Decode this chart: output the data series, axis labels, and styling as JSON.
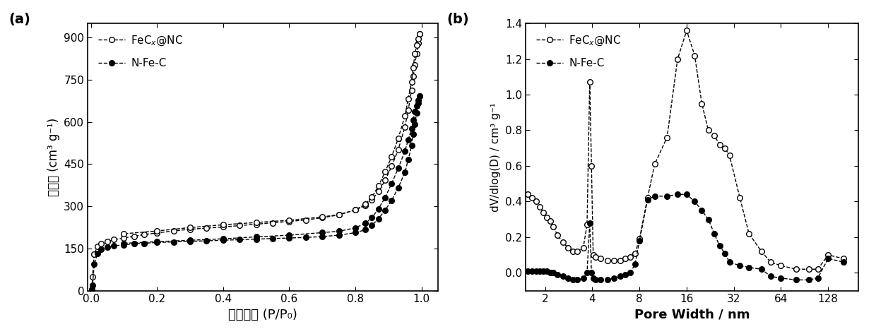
{
  "panel_a": {
    "title": "(a)",
    "xlabel_cn": "相对压力 (P/P₀)",
    "ylabel_cn": "比体积 (cm³ g⁻¹)",
    "ylim": [
      0,
      950
    ],
    "yticks": [
      0,
      150,
      300,
      450,
      600,
      750,
      900
    ],
    "xlim": [
      -0.01,
      1.05
    ],
    "xticks": [
      0.0,
      0.2,
      0.4,
      0.6,
      0.8,
      1.0
    ],
    "fecx_adsorption_x": [
      0.003,
      0.005,
      0.01,
      0.02,
      0.03,
      0.05,
      0.07,
      0.1,
      0.13,
      0.16,
      0.2,
      0.25,
      0.3,
      0.35,
      0.4,
      0.45,
      0.5,
      0.55,
      0.6,
      0.65,
      0.7,
      0.75,
      0.8,
      0.83,
      0.85,
      0.87,
      0.89,
      0.91,
      0.93,
      0.95,
      0.96,
      0.97,
      0.975,
      0.98,
      0.985,
      0.99,
      0.995
    ],
    "fecx_adsorption_y": [
      5,
      50,
      130,
      158,
      168,
      175,
      181,
      187,
      193,
      199,
      205,
      212,
      218,
      222,
      226,
      231,
      236,
      241,
      246,
      251,
      259,
      269,
      287,
      302,
      322,
      352,
      392,
      442,
      502,
      582,
      642,
      712,
      762,
      802,
      842,
      880,
      912
    ],
    "fecx_desorption_x": [
      0.995,
      0.99,
      0.985,
      0.98,
      0.975,
      0.97,
      0.96,
      0.95,
      0.93,
      0.91,
      0.89,
      0.87,
      0.85,
      0.83,
      0.8,
      0.75,
      0.7,
      0.6,
      0.5,
      0.4,
      0.3,
      0.2,
      0.1
    ],
    "fecx_desorption_y": [
      912,
      895,
      872,
      842,
      792,
      742,
      682,
      622,
      542,
      477,
      422,
      372,
      332,
      307,
      287,
      270,
      262,
      250,
      242,
      234,
      224,
      212,
      202
    ],
    "nfec_adsorption_x": [
      0.003,
      0.005,
      0.01,
      0.02,
      0.03,
      0.05,
      0.07,
      0.1,
      0.13,
      0.16,
      0.2,
      0.25,
      0.3,
      0.35,
      0.4,
      0.45,
      0.5,
      0.55,
      0.6,
      0.65,
      0.7,
      0.75,
      0.8,
      0.83,
      0.85,
      0.87,
      0.89,
      0.91,
      0.93,
      0.95,
      0.96,
      0.97,
      0.975,
      0.98,
      0.985,
      0.99,
      0.995
    ],
    "nfec_adsorption_y": [
      5,
      18,
      95,
      132,
      147,
      154,
      159,
      163,
      166,
      168,
      171,
      173,
      175,
      177,
      179,
      181,
      183,
      185,
      187,
      189,
      192,
      197,
      206,
      216,
      231,
      256,
      286,
      321,
      366,
      421,
      466,
      516,
      556,
      591,
      631,
      666,
      691
    ],
    "nfec_desorption_x": [
      0.995,
      0.99,
      0.985,
      0.98,
      0.975,
      0.97,
      0.96,
      0.95,
      0.93,
      0.91,
      0.89,
      0.87,
      0.85,
      0.83,
      0.8,
      0.75,
      0.7,
      0.6,
      0.5,
      0.4,
      0.3,
      0.2,
      0.1
    ],
    "nfec_desorption_y": [
      691,
      676,
      656,
      636,
      606,
      576,
      536,
      496,
      436,
      381,
      331,
      291,
      259,
      239,
      223,
      211,
      206,
      197,
      191,
      184,
      179,
      174,
      168
    ],
    "legend_fecx": "FeC$_x$@NC",
    "legend_nfec": "N-Fe-C"
  },
  "panel_b": {
    "title": "(b)",
    "xlabel": "Pore Width / nm",
    "ylabel": "dV/dlog(D) / cm³ g⁻¹",
    "ylim": [
      -0.1,
      1.4
    ],
    "yticks": [
      0.0,
      0.2,
      0.4,
      0.6,
      0.8,
      1.0,
      1.2,
      1.4
    ],
    "xticks_log": [
      2,
      4,
      8,
      16,
      32,
      64,
      128
    ],
    "xlim_log": [
      1.5,
      200
    ],
    "fecx_x": [
      1.55,
      1.65,
      1.75,
      1.85,
      1.95,
      2.05,
      2.15,
      2.25,
      2.4,
      2.6,
      2.8,
      3.0,
      3.2,
      3.5,
      3.7,
      3.85,
      3.95,
      4.05,
      4.2,
      4.5,
      5.0,
      5.5,
      6.0,
      6.5,
      7.0,
      7.5,
      8.0,
      9.0,
      10.0,
      12.0,
      14.0,
      16.0,
      18.0,
      20.0,
      22.0,
      24.0,
      26.0,
      28.0,
      30.0,
      35.0,
      40.0,
      48.0,
      55.0,
      64.0,
      80.0,
      96.0,
      110.0,
      128.0,
      160.0
    ],
    "fecx_y": [
      0.44,
      0.42,
      0.4,
      0.37,
      0.34,
      0.31,
      0.29,
      0.26,
      0.21,
      0.17,
      0.14,
      0.12,
      0.12,
      0.14,
      0.27,
      1.07,
      0.6,
      0.1,
      0.09,
      0.08,
      0.07,
      0.07,
      0.07,
      0.08,
      0.09,
      0.11,
      0.19,
      0.42,
      0.61,
      0.76,
      1.2,
      1.36,
      1.22,
      0.95,
      0.8,
      0.77,
      0.72,
      0.7,
      0.66,
      0.42,
      0.22,
      0.12,
      0.06,
      0.04,
      0.02,
      0.02,
      0.02,
      0.1,
      0.08
    ],
    "nfec_x": [
      1.55,
      1.65,
      1.75,
      1.85,
      1.95,
      2.05,
      2.15,
      2.25,
      2.4,
      2.6,
      2.8,
      3.0,
      3.2,
      3.5,
      3.7,
      3.85,
      3.95,
      4.05,
      4.2,
      4.5,
      5.0,
      5.5,
      6.0,
      6.5,
      7.0,
      7.5,
      8.0,
      9.0,
      10.0,
      12.0,
      14.0,
      16.0,
      18.0,
      20.0,
      22.0,
      24.0,
      26.0,
      28.0,
      30.0,
      35.0,
      40.0,
      48.0,
      55.0,
      64.0,
      80.0,
      96.0,
      110.0,
      128.0,
      160.0
    ],
    "nfec_y": [
      0.01,
      0.01,
      0.01,
      0.01,
      0.01,
      0.01,
      0.0,
      0.0,
      -0.01,
      -0.02,
      -0.03,
      -0.04,
      -0.04,
      -0.03,
      0.0,
      0.28,
      0.0,
      -0.03,
      -0.04,
      -0.04,
      -0.04,
      -0.03,
      -0.02,
      -0.01,
      0.0,
      0.05,
      0.18,
      0.41,
      0.43,
      0.43,
      0.44,
      0.44,
      0.4,
      0.35,
      0.3,
      0.22,
      0.15,
      0.11,
      0.06,
      0.04,
      0.03,
      0.02,
      -0.02,
      -0.03,
      -0.04,
      -0.04,
      -0.03,
      0.08,
      0.06
    ],
    "legend_fecx": "FeC$_x$@NC",
    "legend_nfec": "N-Fe-C"
  }
}
